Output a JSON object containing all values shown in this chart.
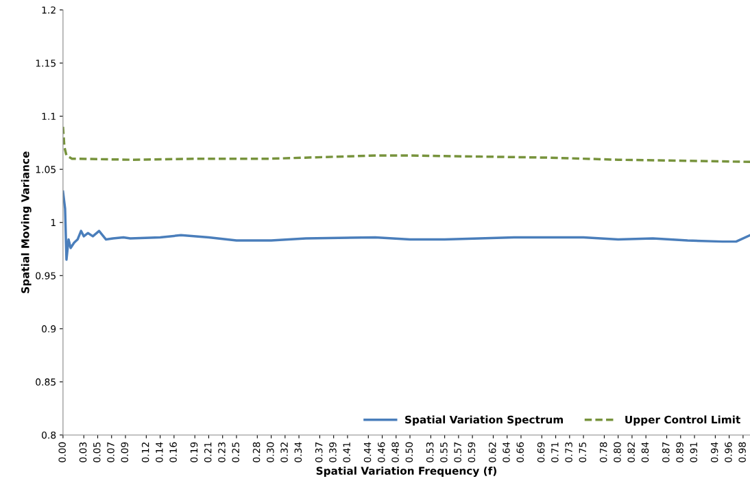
{
  "chart_data": {
    "type": "line",
    "xlabel": "Spatial Variation Frequency (f)",
    "ylabel": "Spatial Moving Variance",
    "xlim": [
      0,
      0.99
    ],
    "ylim": [
      0.8,
      1.2
    ],
    "yticks": [
      0.8,
      0.85,
      0.9,
      0.95,
      1,
      1.05,
      1.1,
      1.15,
      1.2
    ],
    "xticks": [
      {
        "value": 0,
        "label": "0.00"
      },
      {
        "value": 0.03,
        "label": "0.03"
      },
      {
        "value": 0.05,
        "label": "0.05"
      },
      {
        "value": 0.07,
        "label": "0.07"
      },
      {
        "value": 0.09,
        "label": "0.09"
      },
      {
        "value": 0.12,
        "label": "0.12"
      },
      {
        "value": 0.14,
        "label": "0.14"
      },
      {
        "value": 0.16,
        "label": "0.16"
      },
      {
        "value": 0.19,
        "label": "0.19"
      },
      {
        "value": 0.21,
        "label": "0.21"
      },
      {
        "value": 0.23,
        "label": "0.23"
      },
      {
        "value": 0.25,
        "label": "0.25"
      },
      {
        "value": 0.28,
        "label": "0.28"
      },
      {
        "value": 0.3,
        "label": "0.30"
      },
      {
        "value": 0.32,
        "label": "0.32"
      },
      {
        "value": 0.34,
        "label": "0.34"
      },
      {
        "value": 0.37,
        "label": "0.37"
      },
      {
        "value": 0.39,
        "label": "0.39"
      },
      {
        "value": 0.41,
        "label": "0.41"
      },
      {
        "value": 0.44,
        "label": "0.44"
      },
      {
        "value": 0.46,
        "label": "0.46"
      },
      {
        "value": 0.48,
        "label": "0.48"
      },
      {
        "value": 0.5,
        "label": "0.50"
      },
      {
        "value": 0.53,
        "label": "0.53"
      },
      {
        "value": 0.55,
        "label": "0.55"
      },
      {
        "value": 0.57,
        "label": "0.57"
      },
      {
        "value": 0.59,
        "label": "0.59"
      },
      {
        "value": 0.62,
        "label": "0.62"
      },
      {
        "value": 0.64,
        "label": "0.64"
      },
      {
        "value": 0.66,
        "label": "0.66"
      },
      {
        "value": 0.69,
        "label": "0.69"
      },
      {
        "value": 0.71,
        "label": "0.71"
      },
      {
        "value": 0.73,
        "label": "0.73"
      },
      {
        "value": 0.75,
        "label": "0.75"
      },
      {
        "value": 0.78,
        "label": "0.78"
      },
      {
        "value": 0.8,
        "label": "0.80"
      },
      {
        "value": 0.82,
        "label": "0.82"
      },
      {
        "value": 0.84,
        "label": "0.84"
      },
      {
        "value": 0.87,
        "label": "0.87"
      },
      {
        "value": 0.89,
        "label": "0.89"
      },
      {
        "value": 0.91,
        "label": "0.91"
      },
      {
        "value": 0.94,
        "label": "0.94"
      },
      {
        "value": 0.96,
        "label": "0.96"
      },
      {
        "value": 0.98,
        "label": "0.98"
      }
    ],
    "grid": false,
    "legend": "bottom right",
    "marker": "none",
    "series": [
      {
        "name": "Spatial Variation Spectrum",
        "color": "#4a7ebb",
        "line_style": "solid",
        "x": [
          0,
          0.003,
          0.005,
          0.008,
          0.011,
          0.016,
          0.021,
          0.026,
          0.03,
          0.036,
          0.043,
          0.052,
          0.057,
          0.062,
          0.072,
          0.087,
          0.097,
          0.14,
          0.17,
          0.21,
          0.25,
          0.3,
          0.35,
          0.45,
          0.5,
          0.55,
          0.65,
          0.75,
          0.8,
          0.85,
          0.9,
          0.95,
          0.97,
          0.99
        ],
        "values": [
          1.029,
          1.013,
          0.965,
          0.984,
          0.976,
          0.981,
          0.984,
          0.992,
          0.987,
          0.99,
          0.987,
          0.992,
          0.988,
          0.984,
          0.985,
          0.986,
          0.985,
          0.986,
          0.988,
          0.986,
          0.983,
          0.983,
          0.985,
          0.986,
          0.984,
          0.984,
          0.986,
          0.986,
          0.984,
          0.985,
          0.983,
          0.982,
          0.982,
          0.988
        ]
      },
      {
        "name": "Upper Control Limit",
        "color": "#77933c",
        "line_style": "dashed",
        "x": [
          0,
          0.002,
          0.005,
          0.013,
          0.1,
          0.2,
          0.3,
          0.45,
          0.5,
          0.6,
          0.7,
          0.8,
          0.9,
          0.99
        ],
        "values": [
          1.09,
          1.071,
          1.063,
          1.06,
          1.059,
          1.06,
          1.06,
          1.063,
          1.063,
          1.062,
          1.061,
          1.059,
          1.058,
          1.057
        ]
      }
    ]
  }
}
